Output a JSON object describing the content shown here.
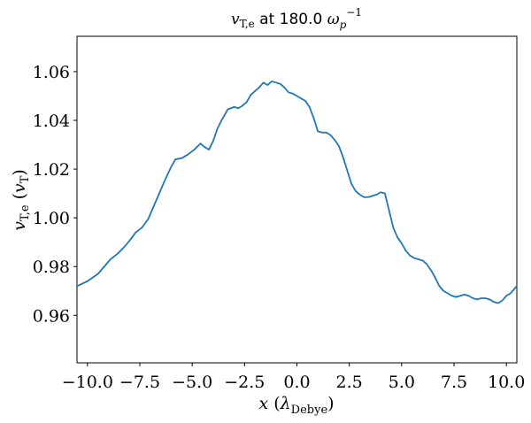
{
  "chart_data": {
    "type": "line",
    "title": {
      "var": "v",
      "sub": "T,e",
      "mid": " at 180.0 ",
      "omega": "ω",
      "omega_sub": "p",
      "omega_sup": "−1"
    },
    "xlabel": {
      "var": "x",
      "lam": "λ",
      "sub": "Debye",
      "open": " (",
      "close": ")"
    },
    "ylabel": {
      "var": "v",
      "sub": "T,e",
      "unit_var": "v",
      "unit_sub": "T",
      "open": " (",
      "close": ")"
    },
    "xlim": [
      -10.5,
      10.5
    ],
    "ylim": [
      0.9405,
      1.0745
    ],
    "xticks": [
      -10.0,
      -7.5,
      -5.0,
      -2.5,
      0.0,
      2.5,
      5.0,
      7.5,
      10.0
    ],
    "xtick_labels": [
      "−10.0",
      "−7.5",
      "−5.0",
      "−2.5",
      "0.0",
      "2.5",
      "5.0",
      "7.5",
      "10.0"
    ],
    "yticks": [
      0.96,
      0.98,
      1.0,
      1.02,
      1.04,
      1.06
    ],
    "ytick_labels": [
      "0.96",
      "0.98",
      "1.00",
      "1.02",
      "1.04",
      "1.06"
    ],
    "grid": false,
    "series": [
      {
        "color": "#1f77b4",
        "x": [
          -10.5,
          -10.0,
          -9.5,
          -9.2,
          -8.9,
          -8.6,
          -8.3,
          -8.0,
          -7.7,
          -7.4,
          -7.1,
          -6.9,
          -6.6,
          -6.3,
          -6.0,
          -5.8,
          -5.5,
          -5.2,
          -4.9,
          -4.6,
          -4.4,
          -4.2,
          -4.0,
          -3.8,
          -3.6,
          -3.3,
          -3.0,
          -2.8,
          -2.6,
          -2.4,
          -2.2,
          -2.0,
          -1.8,
          -1.6,
          -1.4,
          -1.2,
          -1.0,
          -0.8,
          -0.6,
          -0.4,
          -0.2,
          0.0,
          0.2,
          0.4,
          0.6,
          0.8,
          1.0,
          1.2,
          1.4,
          1.6,
          1.8,
          2.0,
          2.2,
          2.4,
          2.6,
          2.8,
          3.0,
          3.2,
          3.4,
          3.6,
          3.8,
          4.0,
          4.2,
          4.4,
          4.6,
          4.8,
          5.0,
          5.2,
          5.4,
          5.6,
          5.8,
          6.0,
          6.2,
          6.4,
          6.6,
          6.8,
          7.0,
          7.2,
          7.4,
          7.6,
          7.8,
          8.0,
          8.2,
          8.4,
          8.6,
          8.8,
          9.0,
          9.2,
          9.4,
          9.6,
          9.8,
          10.0,
          10.2,
          10.5
        ],
        "y": [
          0.972,
          0.974,
          0.977,
          0.98,
          0.983,
          0.985,
          0.9875,
          0.9905,
          0.994,
          0.996,
          0.9995,
          1.0035,
          1.0095,
          1.0155,
          1.021,
          1.024,
          1.0245,
          1.026,
          1.028,
          1.0305,
          1.029,
          1.028,
          1.0315,
          1.0365,
          1.04,
          1.0445,
          1.0455,
          1.045,
          1.046,
          1.0475,
          1.0505,
          1.052,
          1.0535,
          1.0555,
          1.0545,
          1.056,
          1.0555,
          1.055,
          1.0535,
          1.0515,
          1.051,
          1.05,
          1.049,
          1.048,
          1.0455,
          1.041,
          1.0355,
          1.035,
          1.035,
          1.034,
          1.032,
          1.0295,
          1.025,
          1.0195,
          1.014,
          1.011,
          1.0095,
          1.0085,
          1.0085,
          1.009,
          1.0095,
          1.0105,
          1.01,
          1.003,
          0.996,
          0.992,
          0.9895,
          0.9865,
          0.9845,
          0.9835,
          0.983,
          0.9825,
          0.981,
          0.9785,
          0.9755,
          0.972,
          0.97,
          0.969,
          0.968,
          0.9675,
          0.968,
          0.9685,
          0.968,
          0.967,
          0.9665,
          0.967,
          0.967,
          0.9665,
          0.9655,
          0.965,
          0.966,
          0.968,
          0.969,
          0.972
        ]
      }
    ]
  }
}
